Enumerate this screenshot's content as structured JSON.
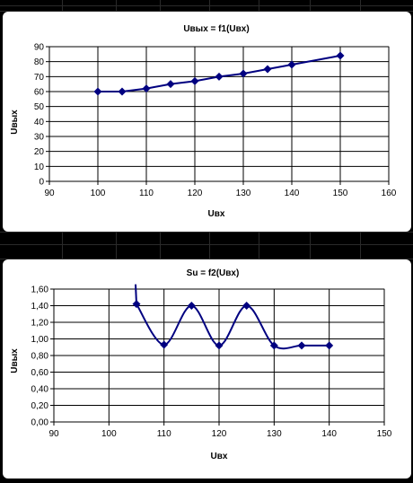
{
  "chart_data": [
    {
      "type": "line",
      "title": "Uвых = f1(Uвх)",
      "xlabel": "Uвх",
      "ylabel": "Uвых",
      "xlim": [
        90,
        160
      ],
      "ylim": [
        0,
        90
      ],
      "xticks": [
        "90",
        "100",
        "110",
        "120",
        "130",
        "140",
        "150",
        "160"
      ],
      "yticks": [
        "0",
        "10",
        "20",
        "30",
        "40",
        "50",
        "60",
        "70",
        "80",
        "90"
      ],
      "series": [
        {
          "x": [
            100,
            105,
            110,
            115,
            120,
            125,
            130,
            135,
            140,
            150
          ],
          "y": [
            60,
            60,
            62,
            65,
            67,
            70,
            72,
            75,
            78,
            84
          ]
        }
      ],
      "grid": true,
      "legend": "none",
      "color": "#000080",
      "smooth": false
    },
    {
      "type": "line",
      "title": "Su = f2(Uвх)",
      "xlabel": "Uвх",
      "ylabel": "Uвых",
      "xlim": [
        90,
        150
      ],
      "ylim": [
        0,
        1.6
      ],
      "xticks": [
        "90",
        "100",
        "110",
        "120",
        "130",
        "140",
        "150"
      ],
      "yticks": [
        "0,00",
        "0,20",
        "0,40",
        "0,60",
        "0,80",
        "1,00",
        "1,20",
        "1,40",
        "1,60"
      ],
      "series": [
        {
          "x": [
            105,
            110,
            115,
            120,
            125,
            130,
            135,
            140
          ],
          "y": [
            1.42,
            0.93,
            1.4,
            0.92,
            1.4,
            0.92,
            0.92,
            0.92
          ]
        }
      ],
      "grid": true,
      "legend": "none",
      "color": "#000080",
      "smooth": true
    }
  ]
}
